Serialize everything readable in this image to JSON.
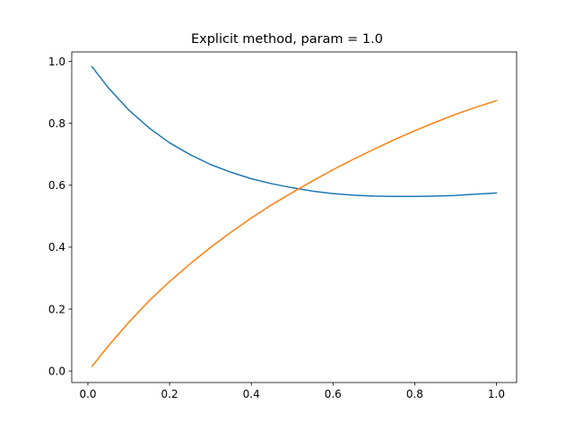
{
  "chart_data": {
    "type": "line",
    "title": "Explicit method, param = 1.0",
    "xlabel": "",
    "ylabel": "",
    "xlim": [
      -0.0395,
      1.0495
    ],
    "ylim": [
      -0.0372,
      1.0305
    ],
    "xticks": [
      0.0,
      0.2,
      0.4,
      0.6,
      0.8,
      1.0
    ],
    "xtick_labels": [
      "0.0",
      "0.2",
      "0.4",
      "0.6",
      "0.8",
      "1.0"
    ],
    "yticks": [
      0.0,
      0.2,
      0.4,
      0.6,
      0.8,
      1.0
    ],
    "ytick_labels": [
      "0.0",
      "0.2",
      "0.4",
      "0.6",
      "0.8",
      "1.0"
    ],
    "grid": false,
    "legend": "none",
    "x": [
      0.01,
      0.05,
      0.1,
      0.15,
      0.2,
      0.25,
      0.3,
      0.35,
      0.4,
      0.45,
      0.5,
      0.55,
      0.6,
      0.65,
      0.7,
      0.75,
      0.8,
      0.85,
      0.9,
      0.95,
      1.0
    ],
    "series": [
      {
        "color": "#1f77b4",
        "values": [
          0.983,
          0.915,
          0.843,
          0.785,
          0.737,
          0.699,
          0.667,
          0.642,
          0.621,
          0.605,
          0.592,
          0.581,
          0.573,
          0.568,
          0.565,
          0.564,
          0.564,
          0.565,
          0.567,
          0.571,
          0.575
        ]
      },
      {
        "color": "#ff7f0e",
        "values": [
          0.015,
          0.081,
          0.157,
          0.227,
          0.289,
          0.346,
          0.399,
          0.448,
          0.494,
          0.537,
          0.576,
          0.614,
          0.65,
          0.684,
          0.716,
          0.747,
          0.776,
          0.803,
          0.829,
          0.852,
          0.873
        ]
      }
    ]
  }
}
